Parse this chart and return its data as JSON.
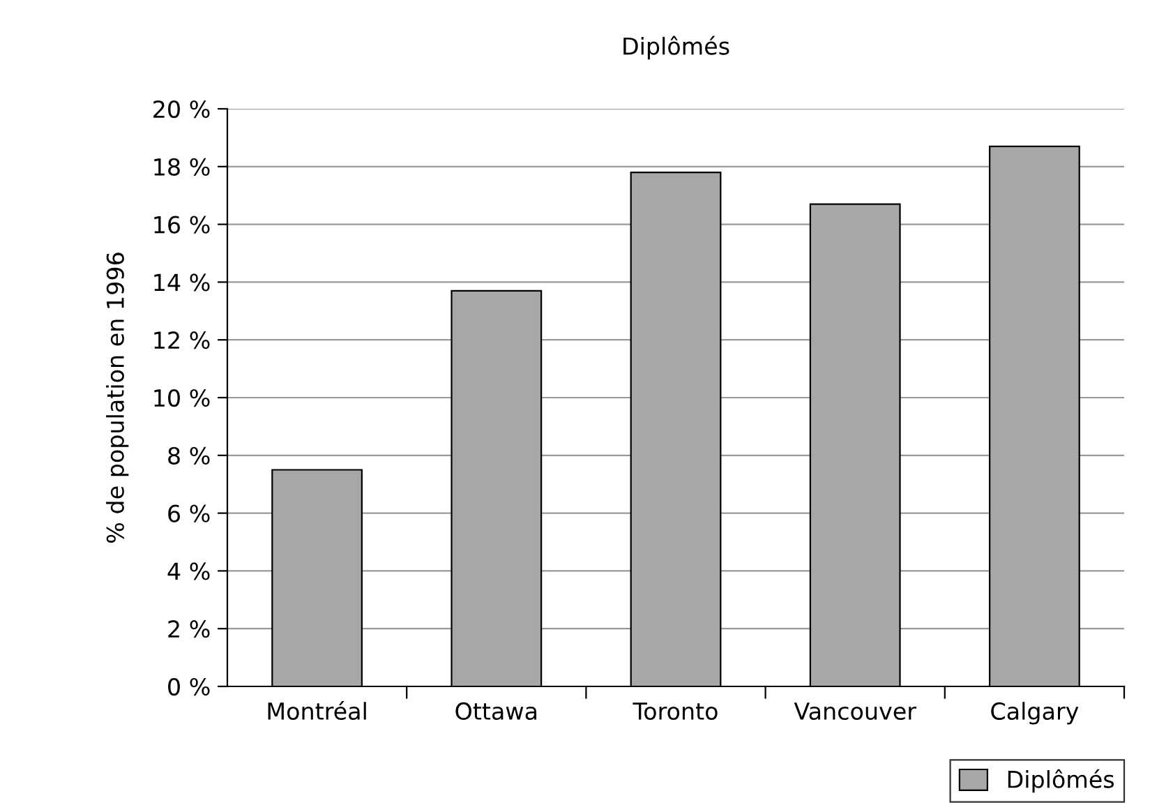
{
  "chart_data": {
    "type": "bar",
    "title": "Diplômés",
    "ylabel": "% de population en 1996",
    "categories": [
      "Montréal",
      "Ottawa",
      "Toronto",
      "Vancouver",
      "Calgary"
    ],
    "series": [
      {
        "name": "Diplômés",
        "color": "#a7a7a9",
        "values": [
          7.5,
          13.7,
          17.8,
          16.7,
          18.7
        ]
      }
    ],
    "ylim": [
      0,
      20
    ],
    "yticks": [
      {
        "value": 0,
        "label": "0 %"
      },
      {
        "value": 2,
        "label": "2 %"
      },
      {
        "value": 4,
        "label": "4 %"
      },
      {
        "value": 6,
        "label": "6 %"
      },
      {
        "value": 8,
        "label": "8 %"
      },
      {
        "value": 10,
        "label": "10 %"
      },
      {
        "value": 12,
        "label": "12 %"
      },
      {
        "value": 14,
        "label": "14 %"
      },
      {
        "value": 16,
        "label": "16 %"
      },
      {
        "value": 18,
        "label": "18 %"
      },
      {
        "value": 20,
        "label": "20 %"
      }
    ],
    "grid": "y",
    "legend": "bottom right"
  }
}
